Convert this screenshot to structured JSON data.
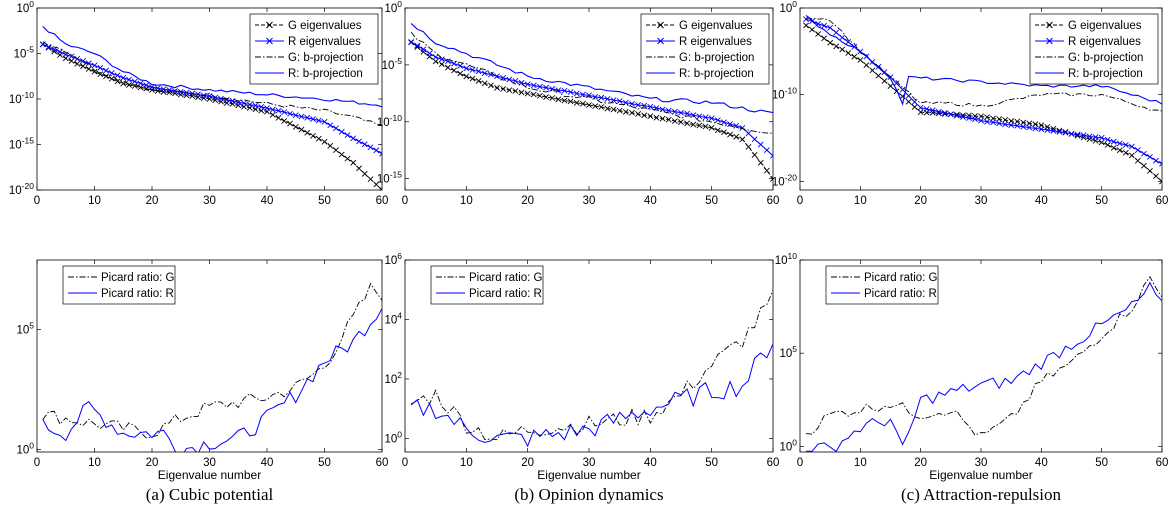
{
  "colors": {
    "g_series": "#000000",
    "r_series": "#0000ff",
    "axis": "#000000"
  },
  "columns": [
    {
      "caption": "(a)  Cubic potential",
      "top": {
        "ylim": [
          1e-20,
          1
        ],
        "yticks": [
          {
            "v": 1,
            "base": "10",
            "exp": "0"
          },
          {
            "v": 1e-05,
            "base": "10",
            "exp": "-5"
          },
          {
            "v": 1e-10,
            "base": "10",
            "exp": "-10"
          },
          {
            "v": 1e-15,
            "base": "10",
            "exp": "-15"
          },
          {
            "v": 1e-20,
            "base": "10",
            "exp": "-20"
          }
        ]
      },
      "bottom": {
        "ylim": [
          0.8,
          80000000.0
        ],
        "yticks": [
          {
            "v": 1,
            "base": "10",
            "exp": "0"
          },
          {
            "v": 100000.0,
            "base": "10",
            "exp": "5"
          }
        ]
      }
    },
    {
      "caption": "(b)  Opinion dynamics",
      "top": {
        "ylim": [
          1e-16,
          1
        ],
        "yticks": [
          {
            "v": 1,
            "base": "10",
            "exp": "0"
          },
          {
            "v": 1e-05,
            "base": "10",
            "exp": "-5"
          },
          {
            "v": 1e-10,
            "base": "10",
            "exp": "-10"
          },
          {
            "v": 1e-15,
            "base": "10",
            "exp": "-15"
          }
        ]
      },
      "bottom": {
        "ylim": [
          0.35,
          1000000.0
        ],
        "yticks": [
          {
            "v": 1,
            "base": "10",
            "exp": "0"
          },
          {
            "v": 100,
            "base": "10",
            "exp": "2"
          },
          {
            "v": 10000.0,
            "base": "10",
            "exp": "4"
          },
          {
            "v": 1000000.0,
            "base": "10",
            "exp": "6"
          }
        ]
      }
    },
    {
      "caption": "(c)  Attraction-repulsion",
      "top": {
        "ylim": [
          1e-21,
          1
        ],
        "yticks": [
          {
            "v": 1,
            "base": "10",
            "exp": "0"
          },
          {
            "v": 1e-10,
            "base": "10",
            "exp": "-10"
          },
          {
            "v": 1e-20,
            "base": "10",
            "exp": "-20"
          }
        ]
      },
      "bottom": {
        "ylim": [
          0.5,
          10000000000.0
        ],
        "yticks": [
          {
            "v": 1,
            "base": "10",
            "exp": "0"
          },
          {
            "v": 100000.0,
            "base": "10",
            "exp": "5"
          },
          {
            "v": 10000000000.0,
            "base": "10",
            "exp": "10"
          }
        ]
      }
    }
  ],
  "legend_top": [
    "G eigenvalues",
    "R eigenvalues",
    "G: b-projection",
    "R: b-projection"
  ],
  "legend_bottom": [
    "Picard ratio: G",
    "Picard ratio: R"
  ],
  "xlabel": "Eigenvalue number",
  "xticks": [
    0,
    10,
    20,
    30,
    40,
    50,
    60
  ],
  "chart_data": [
    {
      "type": "line",
      "panel": "(a) top",
      "xlim": [
        0,
        60
      ],
      "yscale": "log",
      "series": [
        {
          "name": "G eigenvalues",
          "points": [
            [
              1,
              0.0001
            ],
            [
              5,
              3e-06
            ],
            [
              10,
              1e-07
            ],
            [
              15,
              5e-09
            ],
            [
              20,
              1e-09
            ],
            [
              30,
              1e-10
            ],
            [
              40,
              4e-12
            ],
            [
              50,
              2e-15
            ],
            [
              55,
              1e-17
            ],
            [
              60,
              1e-20
            ]
          ]
        },
        {
          "name": "R eigenvalues",
          "points": [
            [
              1,
              0.0001
            ],
            [
              5,
              8e-06
            ],
            [
              10,
              5e-07
            ],
            [
              15,
              2e-08
            ],
            [
              20,
              2e-09
            ],
            [
              30,
              2e-10
            ],
            [
              40,
              1e-11
            ],
            [
              50,
              3e-13
            ],
            [
              55,
              5e-15
            ],
            [
              60,
              1e-16
            ]
          ]
        },
        {
          "name": "G: b-projection",
          "points": [
            [
              1,
              0.0002
            ],
            [
              5,
              2e-05
            ],
            [
              10,
              2e-07
            ],
            [
              15,
              1e-08
            ],
            [
              20,
              1e-09
            ],
            [
              30,
              3e-10
            ],
            [
              40,
              3e-11
            ],
            [
              50,
              5e-12
            ],
            [
              55,
              1e-12
            ],
            [
              60,
              1e-13
            ]
          ]
        },
        {
          "name": "R: b-projection",
          "points": [
            [
              1,
              0.01
            ],
            [
              3,
              0.001
            ],
            [
              5,
              0.0001
            ],
            [
              10,
              1e-05
            ],
            [
              15,
              1e-07
            ],
            [
              20,
              5e-09
            ],
            [
              30,
              1e-09
            ],
            [
              40,
              3e-10
            ],
            [
              50,
              1e-10
            ],
            [
              60,
              2e-11
            ]
          ]
        }
      ]
    },
    {
      "type": "line",
      "panel": "(a) bottom",
      "xlim": [
        0,
        60
      ],
      "yscale": "log",
      "series": [
        {
          "name": "Picard ratio: G",
          "points": [
            [
              1,
              30
            ],
            [
              10,
              12
            ],
            [
              20,
              5
            ],
            [
              25,
              20
            ],
            [
              30,
              60
            ],
            [
              40,
              150
            ],
            [
              45,
              400
            ],
            [
              50,
              3000
            ],
            [
              55,
              300000.0
            ],
            [
              58,
              5000000.0
            ],
            [
              60,
              3000000.0
            ]
          ]
        },
        {
          "name": "Picard ratio: R",
          "points": [
            [
              1,
              10
            ],
            [
              5,
              5
            ],
            [
              9,
              60
            ],
            [
              15,
              5
            ],
            [
              22,
              5
            ],
            [
              25,
              1
            ],
            [
              30,
              2
            ],
            [
              35,
              3
            ],
            [
              40,
              20
            ],
            [
              45,
              200
            ],
            [
              50,
              5000
            ],
            [
              55,
              30000.0
            ],
            [
              60,
              1000000.0
            ]
          ]
        }
      ]
    },
    {
      "type": "line",
      "panel": "(b) top",
      "xlim": [
        0,
        60
      ],
      "yscale": "log",
      "series": [
        {
          "name": "G eigenvalues",
          "points": [
            [
              1,
              0.001
            ],
            [
              5,
              2e-05
            ],
            [
              10,
              1e-06
            ],
            [
              15,
              1e-07
            ],
            [
              20,
              3e-08
            ],
            [
              30,
              3e-09
            ],
            [
              40,
              3e-10
            ],
            [
              50,
              3e-11
            ],
            [
              55,
              3e-12
            ],
            [
              60,
              1e-15
            ]
          ]
        },
        {
          "name": "R eigenvalues",
          "points": [
            [
              1,
              0.001
            ],
            [
              5,
              5e-05
            ],
            [
              10,
              5e-06
            ],
            [
              15,
              1e-06
            ],
            [
              20,
              2e-07
            ],
            [
              30,
              2e-08
            ],
            [
              40,
              2e-09
            ],
            [
              50,
              2e-10
            ],
            [
              55,
              3e-11
            ],
            [
              60,
              1e-13
            ]
          ]
        },
        {
          "name": "G: b-projection",
          "points": [
            [
              1,
              0.005
            ],
            [
              5,
              0.0001
            ],
            [
              10,
              1e-05
            ],
            [
              15,
              1e-06
            ],
            [
              20,
              1e-07
            ],
            [
              30,
              1e-08
            ],
            [
              40,
              1e-09
            ],
            [
              50,
              1e-10
            ],
            [
              60,
              1e-11
            ]
          ]
        },
        {
          "name": "R: b-projection",
          "points": [
            [
              1,
              0.05
            ],
            [
              5,
              0.001
            ],
            [
              10,
              0.0001
            ],
            [
              15,
              1e-05
            ],
            [
              20,
              1e-06
            ],
            [
              30,
              1e-07
            ],
            [
              40,
              1e-08
            ],
            [
              50,
              5e-09
            ],
            [
              60,
              5e-10
            ]
          ]
        }
      ]
    },
    {
      "type": "line",
      "panel": "(b) bottom",
      "xlim": [
        0,
        60
      ],
      "yscale": "log",
      "series": [
        {
          "name": "Picard ratio: G",
          "points": [
            [
              1,
              15
            ],
            [
              5,
              30
            ],
            [
              10,
              3
            ],
            [
              15,
              1
            ],
            [
              20,
              2
            ],
            [
              30,
              3
            ],
            [
              40,
              6
            ],
            [
              45,
              30
            ],
            [
              50,
              300
            ],
            [
              55,
              2000
            ],
            [
              60,
              50000.0
            ]
          ]
        },
        {
          "name": "Picard ratio: R",
          "points": [
            [
              1,
              10
            ],
            [
              5,
              10
            ],
            [
              10,
              2
            ],
            [
              15,
              1
            ],
            [
              20,
              1
            ],
            [
              30,
              2
            ],
            [
              40,
              10
            ],
            [
              45,
              20
            ],
            [
              50,
              40
            ],
            [
              55,
              60
            ],
            [
              60,
              2000
            ]
          ]
        }
      ]
    },
    {
      "type": "line",
      "panel": "(c) top",
      "xlim": [
        0,
        60
      ],
      "yscale": "log",
      "series": [
        {
          "name": "G eigenvalues",
          "points": [
            [
              1,
              0.01
            ],
            [
              5,
              0.0001
            ],
            [
              10,
              1e-06
            ],
            [
              15,
              1e-09
            ],
            [
              20,
              1e-12
            ],
            [
              30,
              3e-13
            ],
            [
              40,
              3e-14
            ],
            [
              50,
              3e-16
            ],
            [
              55,
              1e-17
            ],
            [
              60,
              1e-20
            ]
          ]
        },
        {
          "name": "R eigenvalues",
          "points": [
            [
              1,
              0.05
            ],
            [
              5,
              0.005
            ],
            [
              10,
              1e-05
            ],
            [
              15,
              1e-08
            ],
            [
              20,
              3e-12
            ],
            [
              30,
              1e-13
            ],
            [
              40,
              1e-14
            ],
            [
              50,
              1e-15
            ],
            [
              55,
              1e-16
            ],
            [
              60,
              1e-18
            ]
          ]
        },
        {
          "name": "G: b-projection",
          "points": [
            [
              1,
              0.1
            ],
            [
              5,
              0.05
            ],
            [
              10,
              1e-05
            ],
            [
              15,
              1e-08
            ],
            [
              20,
              1e-11
            ],
            [
              25,
              1e-11
            ],
            [
              30,
              5e-12
            ],
            [
              40,
              1e-10
            ],
            [
              50,
              1e-10
            ],
            [
              55,
              1e-11
            ],
            [
              60,
              1e-12
            ]
          ]
        },
        {
          "name": "R: b-projection",
          "points": [
            [
              1,
              0.1
            ],
            [
              5,
              0.001
            ],
            [
              10,
              1e-05
            ],
            [
              15,
              1e-08
            ],
            [
              17,
              1e-11
            ],
            [
              18,
              1e-08
            ],
            [
              30,
              3e-09
            ],
            [
              40,
              1e-09
            ],
            [
              50,
              1e-09
            ],
            [
              60,
              1e-11
            ]
          ]
        }
      ]
    },
    {
      "type": "line",
      "panel": "(c) bottom",
      "xlim": [
        0,
        60
      ],
      "yscale": "log",
      "series": [
        {
          "name": "Picard ratio: G",
          "points": [
            [
              1,
              5
            ],
            [
              5,
              50
            ],
            [
              10,
              100
            ],
            [
              15,
              200
            ],
            [
              20,
              50
            ],
            [
              25,
              100
            ],
            [
              30,
              3
            ],
            [
              35,
              30
            ],
            [
              40,
              3000
            ],
            [
              45,
              30000.0
            ],
            [
              50,
              1000000.0
            ],
            [
              55,
              30000000.0
            ],
            [
              58,
              1000000000.0
            ],
            [
              60,
              100000000.0
            ]
          ]
        },
        {
          "name": "Picard ratio: R",
          "points": [
            [
              1,
              1
            ],
            [
              5,
              0.7
            ],
            [
              10,
              10
            ],
            [
              15,
              30
            ],
            [
              17,
              0.6
            ],
            [
              20,
              300
            ],
            [
              30,
              2000
            ],
            [
              35,
              3000
            ],
            [
              40,
              30000.0
            ],
            [
              45,
              300000.0
            ],
            [
              50,
              3000000.0
            ],
            [
              55,
              30000000.0
            ],
            [
              58,
              300000000.0
            ],
            [
              60,
              30000000.0
            ]
          ]
        }
      ]
    }
  ]
}
